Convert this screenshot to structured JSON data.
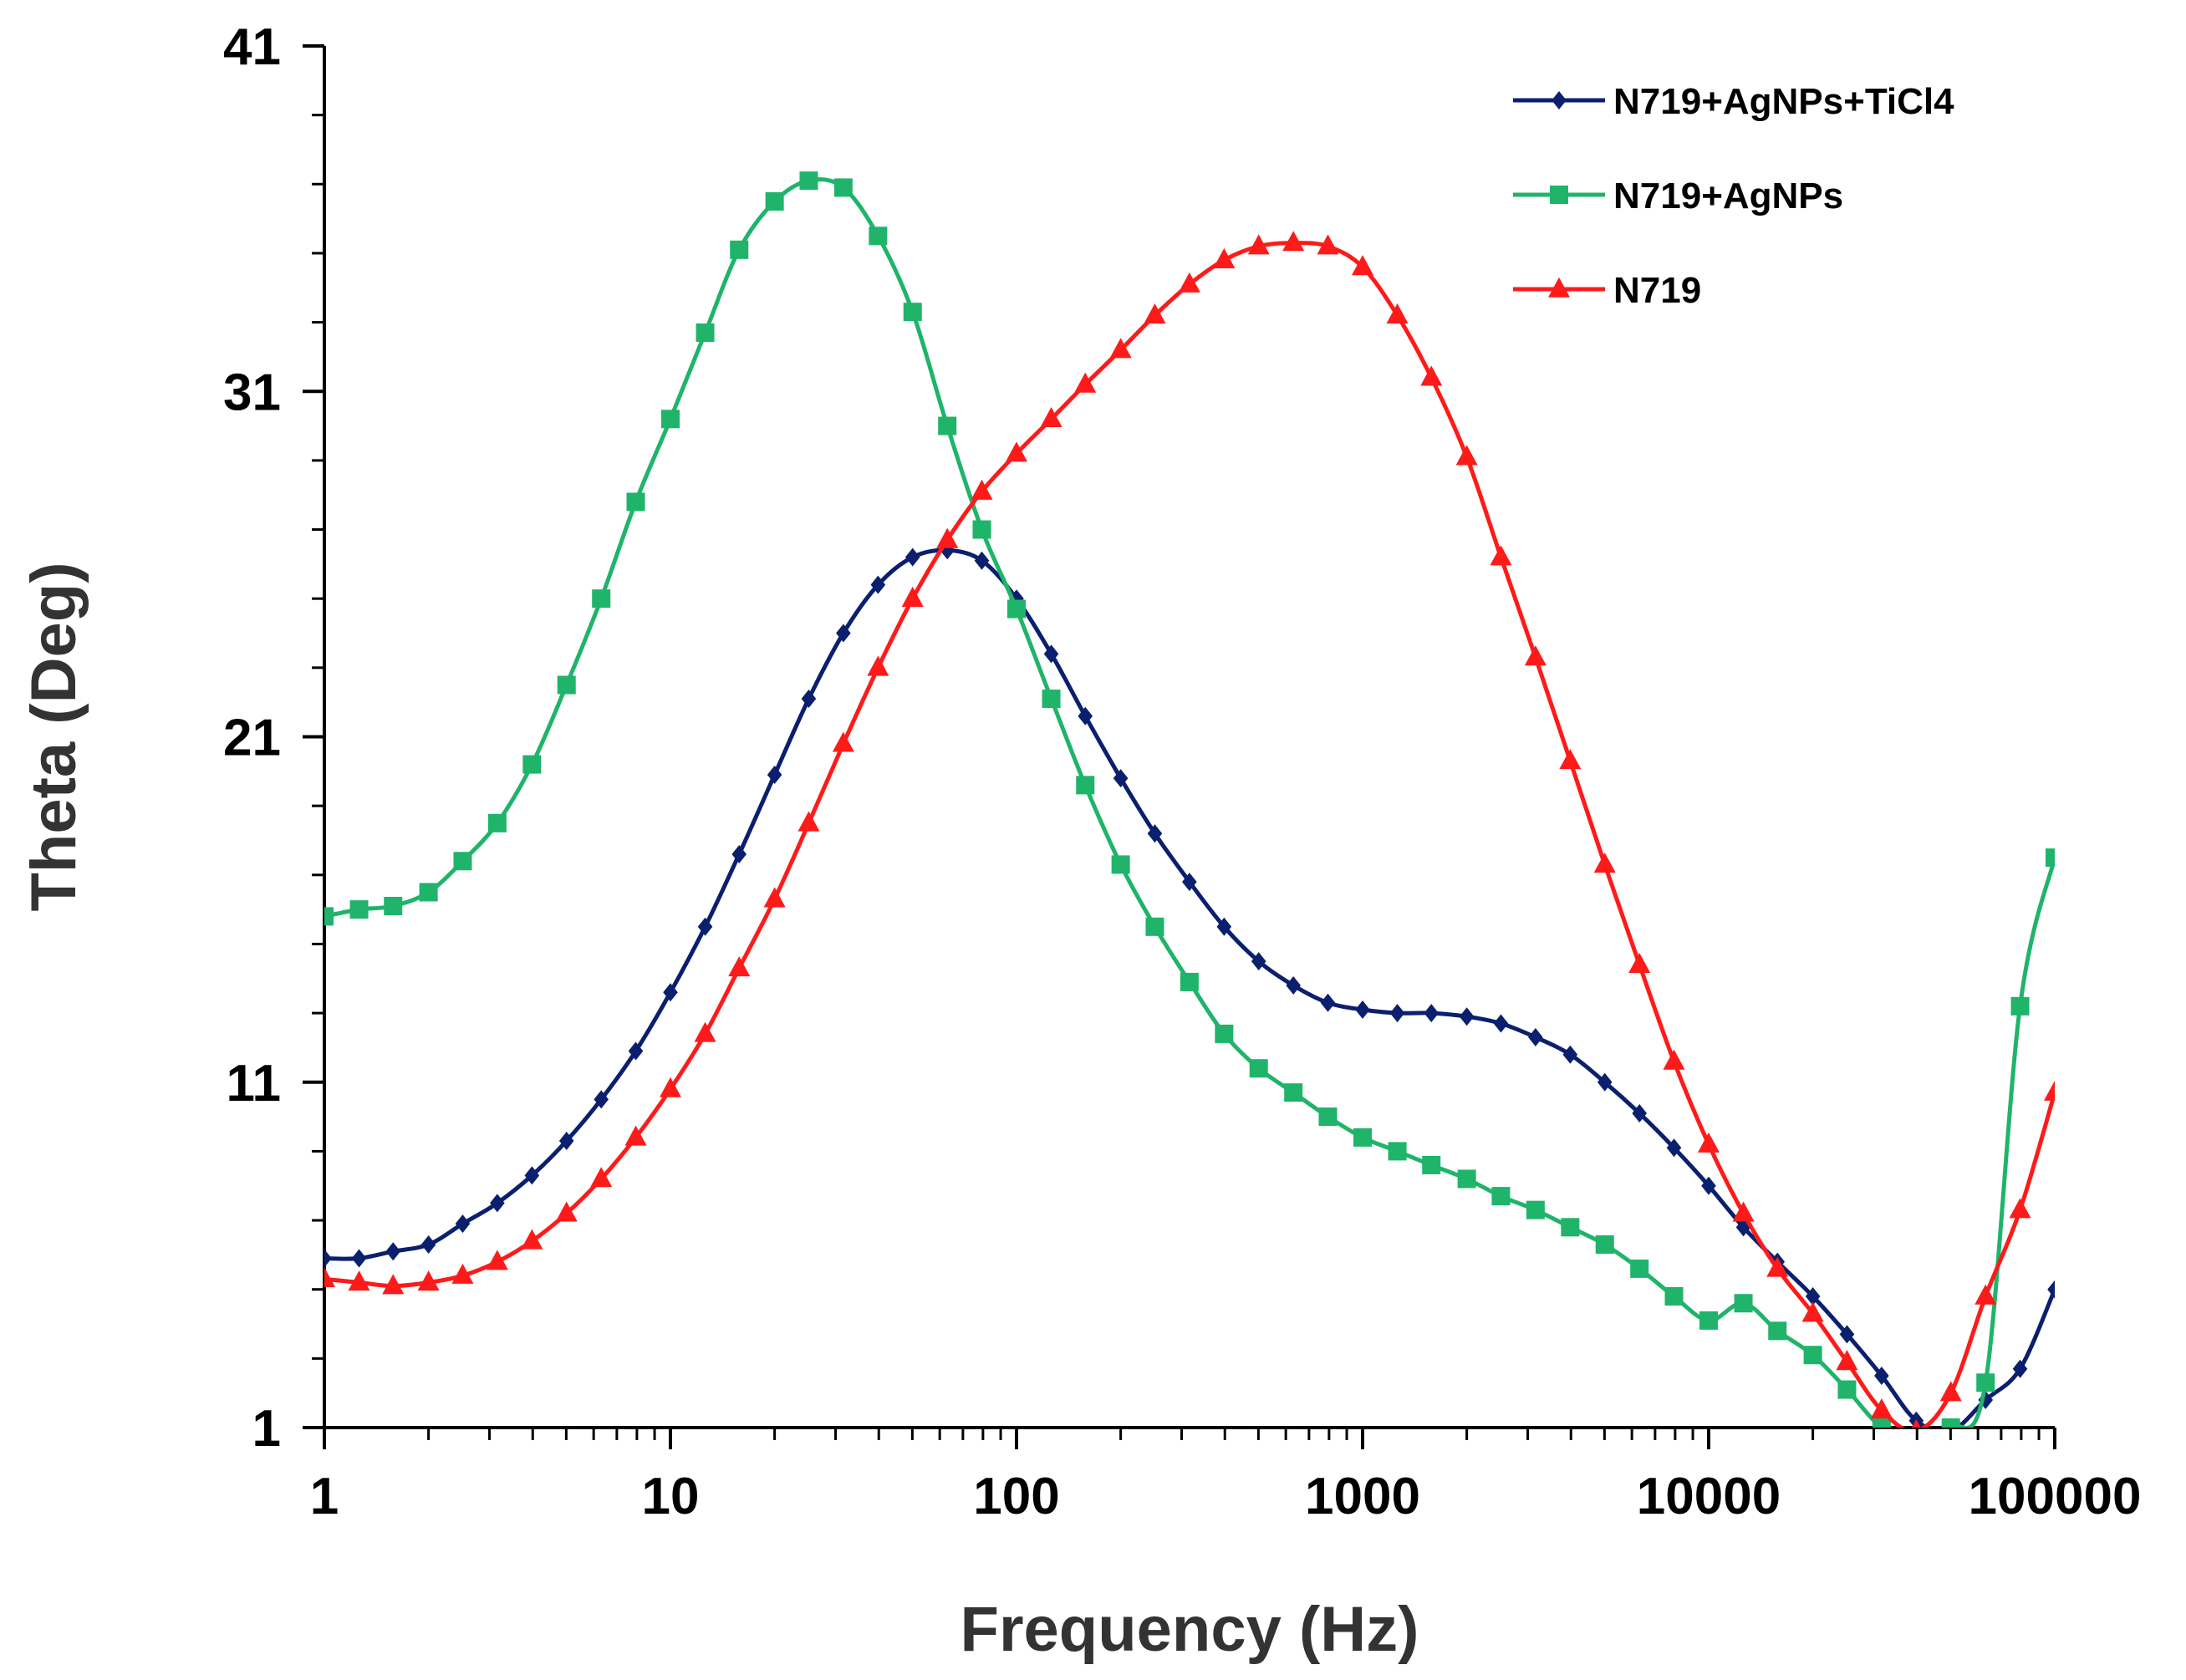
{
  "chart_data": {
    "type": "line",
    "title": "",
    "xlabel": "Frequency (Hz)",
    "ylabel": "Theta (Deg)",
    "xscale": "log",
    "xlim": [
      1,
      100000
    ],
    "ylim": [
      1,
      41
    ],
    "xticks": [
      1,
      10,
      100,
      1000,
      10000,
      100000
    ],
    "xtick_labels": [
      "1",
      "10",
      "100",
      "1000",
      "10000",
      "100000"
    ],
    "yticks": [
      1,
      11,
      21,
      31,
      41
    ],
    "ytick_labels": [
      "1",
      "11",
      "21",
      "31",
      "41"
    ],
    "grid": false,
    "legend_position": "top-right",
    "series": [
      {
        "name": "N719+AgNPs+TiCl4",
        "color": "#0a1f6e",
        "marker": "diamond",
        "x": [
          1,
          1.26,
          1.58,
          2,
          2.51,
          3.16,
          3.98,
          5.01,
          6.31,
          7.94,
          10,
          12.6,
          15.8,
          20,
          25.1,
          31.6,
          39.8,
          50.1,
          63.1,
          79.4,
          100,
          126,
          158,
          200,
          251,
          316,
          398,
          501,
          631,
          794,
          1000,
          1260,
          1580,
          2000,
          2510,
          3160,
          3980,
          5010,
          6310,
          7940,
          10000,
          12600,
          15800,
          20000,
          25100,
          31600,
          39800,
          50100,
          63100,
          79400,
          100000
        ],
        "y": [
          5.9,
          5.9,
          6.1,
          6.3,
          6.9,
          7.5,
          8.3,
          9.3,
          10.5,
          11.9,
          13.6,
          15.5,
          17.6,
          19.9,
          22.1,
          24.0,
          25.4,
          26.2,
          26.4,
          26.1,
          25.0,
          23.4,
          21.6,
          19.8,
          18.2,
          16.8,
          15.5,
          14.5,
          13.8,
          13.3,
          13.1,
          13.0,
          13.0,
          12.9,
          12.7,
          12.3,
          11.8,
          11.0,
          10.1,
          9.1,
          8.0,
          6.8,
          5.8,
          4.8,
          3.7,
          2.5,
          1.2,
          0.9,
          1.8,
          2.7,
          5.0
        ]
      },
      {
        "name": "N719+AgNPs",
        "color": "#1fb46a",
        "marker": "square",
        "x": [
          1,
          1.26,
          1.58,
          2,
          2.51,
          3.16,
          3.98,
          5.01,
          6.31,
          7.94,
          10,
          12.6,
          15.8,
          20,
          25.1,
          31.6,
          39.8,
          50.1,
          63.1,
          79.4,
          100,
          126,
          158,
          200,
          251,
          316,
          398,
          501,
          631,
          794,
          1000,
          1260,
          1580,
          2000,
          2510,
          3160,
          3980,
          5010,
          6310,
          7940,
          10000,
          12600,
          15800,
          20000,
          25100,
          31600,
          39800,
          50100,
          63100,
          79400,
          100000
        ],
        "y": [
          15.8,
          16.0,
          16.1,
          16.5,
          17.4,
          18.5,
          20.2,
          22.5,
          25.0,
          27.8,
          30.2,
          32.7,
          35.1,
          36.5,
          37.1,
          36.9,
          35.5,
          33.3,
          30.0,
          27.0,
          24.7,
          22.1,
          19.6,
          17.3,
          15.5,
          13.9,
          12.4,
          11.4,
          10.7,
          10.0,
          9.4,
          9.0,
          8.6,
          8.2,
          7.7,
          7.3,
          6.8,
          6.3,
          5.6,
          4.8,
          4.1,
          4.6,
          3.8,
          3.1,
          2.1,
          1.0,
          0.6,
          1.0,
          2.3,
          13.2,
          17.5
        ]
      },
      {
        "name": "N719",
        "color": "#ff1a1a",
        "marker": "triangle",
        "x": [
          1,
          1.26,
          1.58,
          2,
          2.51,
          3.16,
          3.98,
          5.01,
          6.31,
          7.94,
          10,
          12.6,
          15.8,
          20,
          25.1,
          31.6,
          39.8,
          50.1,
          63.1,
          79.4,
          100,
          126,
          158,
          200,
          251,
          316,
          398,
          501,
          631,
          794,
          1000,
          1260,
          1580,
          2000,
          2510,
          3160,
          3980,
          5010,
          6310,
          7940,
          10000,
          12600,
          15800,
          20000,
          25100,
          31600,
          39800,
          50100,
          63100,
          79400,
          100000
        ],
        "y": [
          5.3,
          5.2,
          5.1,
          5.2,
          5.4,
          5.8,
          6.4,
          7.2,
          8.2,
          9.4,
          10.8,
          12.4,
          14.3,
          16.3,
          18.5,
          20.8,
          23.0,
          25.0,
          26.7,
          28.1,
          29.2,
          30.2,
          31.2,
          32.2,
          33.2,
          34.1,
          34.8,
          35.2,
          35.3,
          35.2,
          34.6,
          33.2,
          31.4,
          29.1,
          26.2,
          23.3,
          20.3,
          17.3,
          14.4,
          11.6,
          9.2,
          7.2,
          5.6,
          4.3,
          2.9,
          1.5,
          0.9,
          2.0,
          4.8,
          7.3,
          10.7
        ]
      }
    ]
  }
}
